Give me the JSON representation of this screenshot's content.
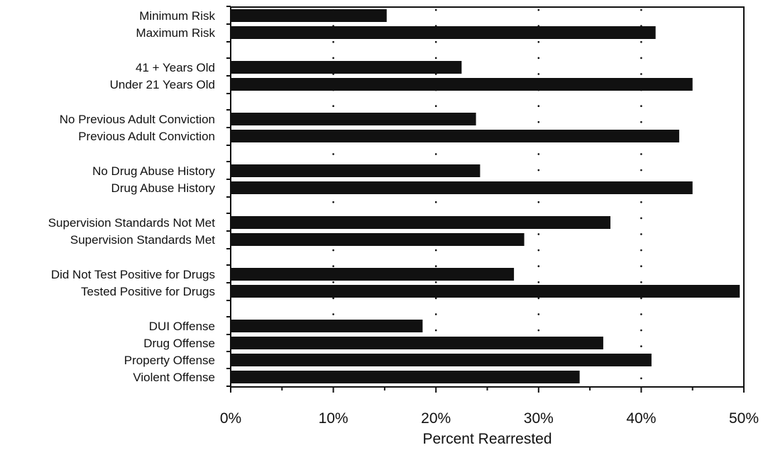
{
  "chart_data": {
    "type": "bar",
    "orientation": "horizontal",
    "title": "",
    "xlabel": "Percent Rearrested",
    "ylabel": "",
    "xlim": [
      0,
      50
    ],
    "x_tick_values": [
      0,
      10,
      20,
      30,
      40,
      50
    ],
    "x_tick_labels": [
      "0%",
      "10%",
      "20%",
      "30%",
      "40%",
      "50%"
    ],
    "grid": "vertical-dotted",
    "bar_color": "#111111",
    "groups": [
      {
        "categories": [
          "Minimum Risk",
          "Maximum Risk"
        ],
        "values": [
          15.2,
          41.4
        ]
      },
      {
        "categories": [
          "41 + Years Old",
          "Under 21 Years Old"
        ],
        "values": [
          22.5,
          45.0
        ]
      },
      {
        "categories": [
          "No Previous Adult Conviction",
          "Previous Adult Conviction"
        ],
        "values": [
          23.9,
          43.7
        ]
      },
      {
        "categories": [
          "No Drug Abuse History",
          "Drug Abuse History"
        ],
        "values": [
          24.3,
          45.0
        ]
      },
      {
        "categories": [
          "Supervision Standards Not Met",
          "Supervision Standards Met"
        ],
        "values": [
          37.0,
          28.6
        ]
      },
      {
        "categories": [
          "Did Not Test Positive for Drugs",
          "Tested Positive for Drugs"
        ],
        "values": [
          27.6,
          49.6
        ]
      },
      {
        "categories": [
          "DUI Offense",
          "Drug Offense",
          "Property Offense",
          "Violent Offense"
        ],
        "values": [
          18.7,
          36.3,
          41.0,
          34.0
        ]
      }
    ]
  }
}
